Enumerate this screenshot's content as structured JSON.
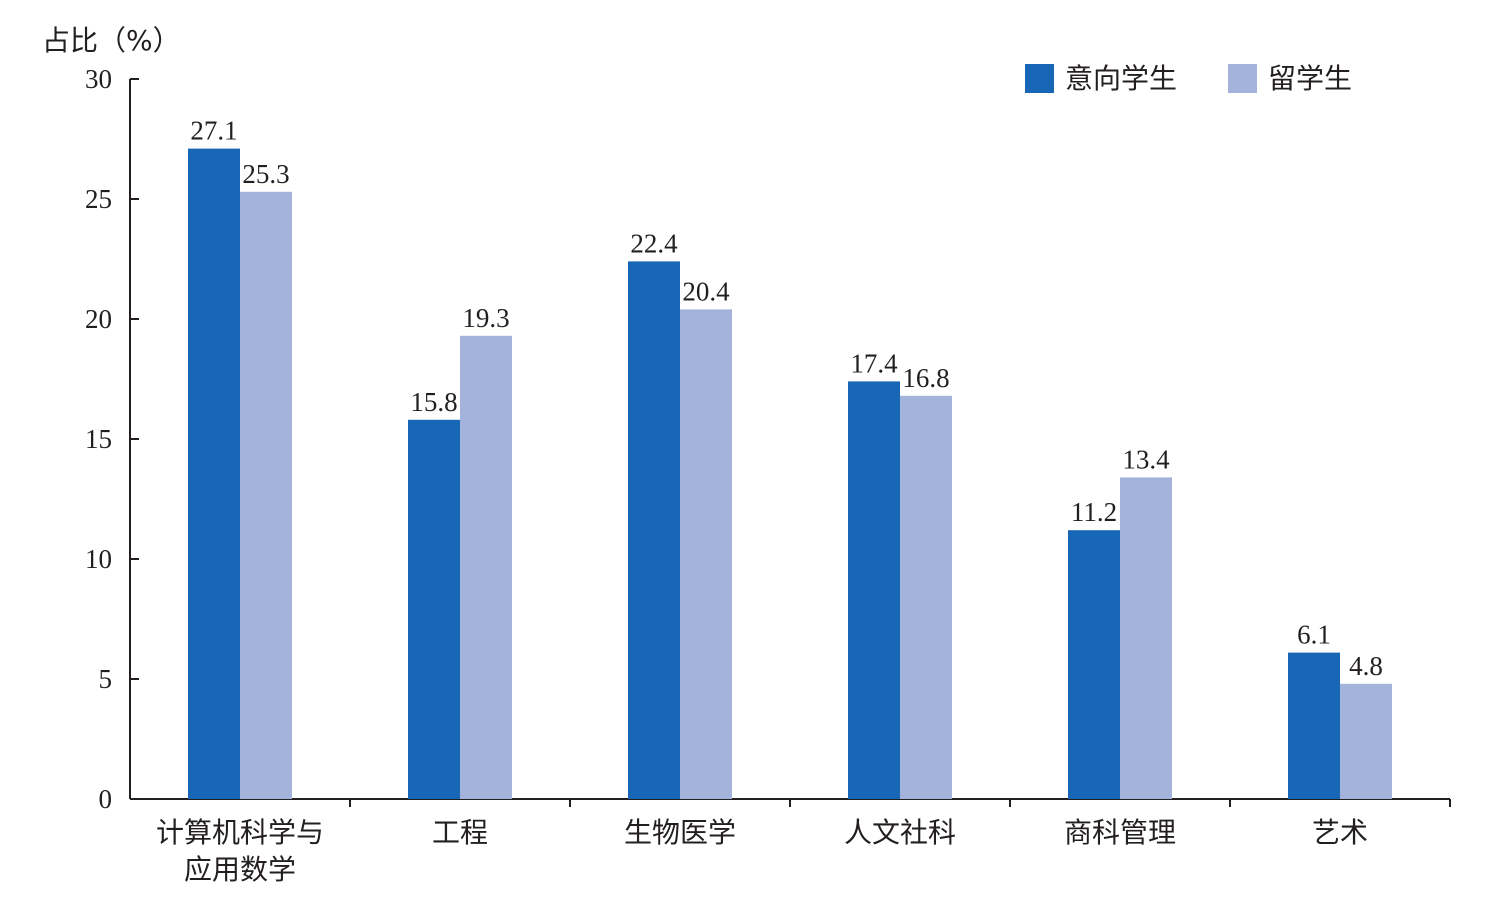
{
  "chart_data": {
    "type": "bar",
    "ylabel": "占比（%）",
    "categories": [
      [
        "计算机科学与",
        "应用数学"
      ],
      [
        "工程"
      ],
      [
        "生物医学"
      ],
      [
        "人文社科"
      ],
      [
        "商科管理"
      ],
      [
        "艺术"
      ]
    ],
    "series": [
      {
        "name": "意向学生",
        "color": "#1767b6",
        "values": [
          27.1,
          15.8,
          22.4,
          17.4,
          11.2,
          6.1
        ]
      },
      {
        "name": "留学生",
        "color": "#a3b3dc",
        "values": [
          25.3,
          19.3,
          20.4,
          16.8,
          13.4,
          4.8
        ]
      }
    ],
    "ylim": [
      0,
      30
    ],
    "yticks": [
      0,
      5,
      10,
      15,
      20,
      25,
      30
    ],
    "grid": false,
    "legend": "top-right",
    "data_labels": true
  }
}
